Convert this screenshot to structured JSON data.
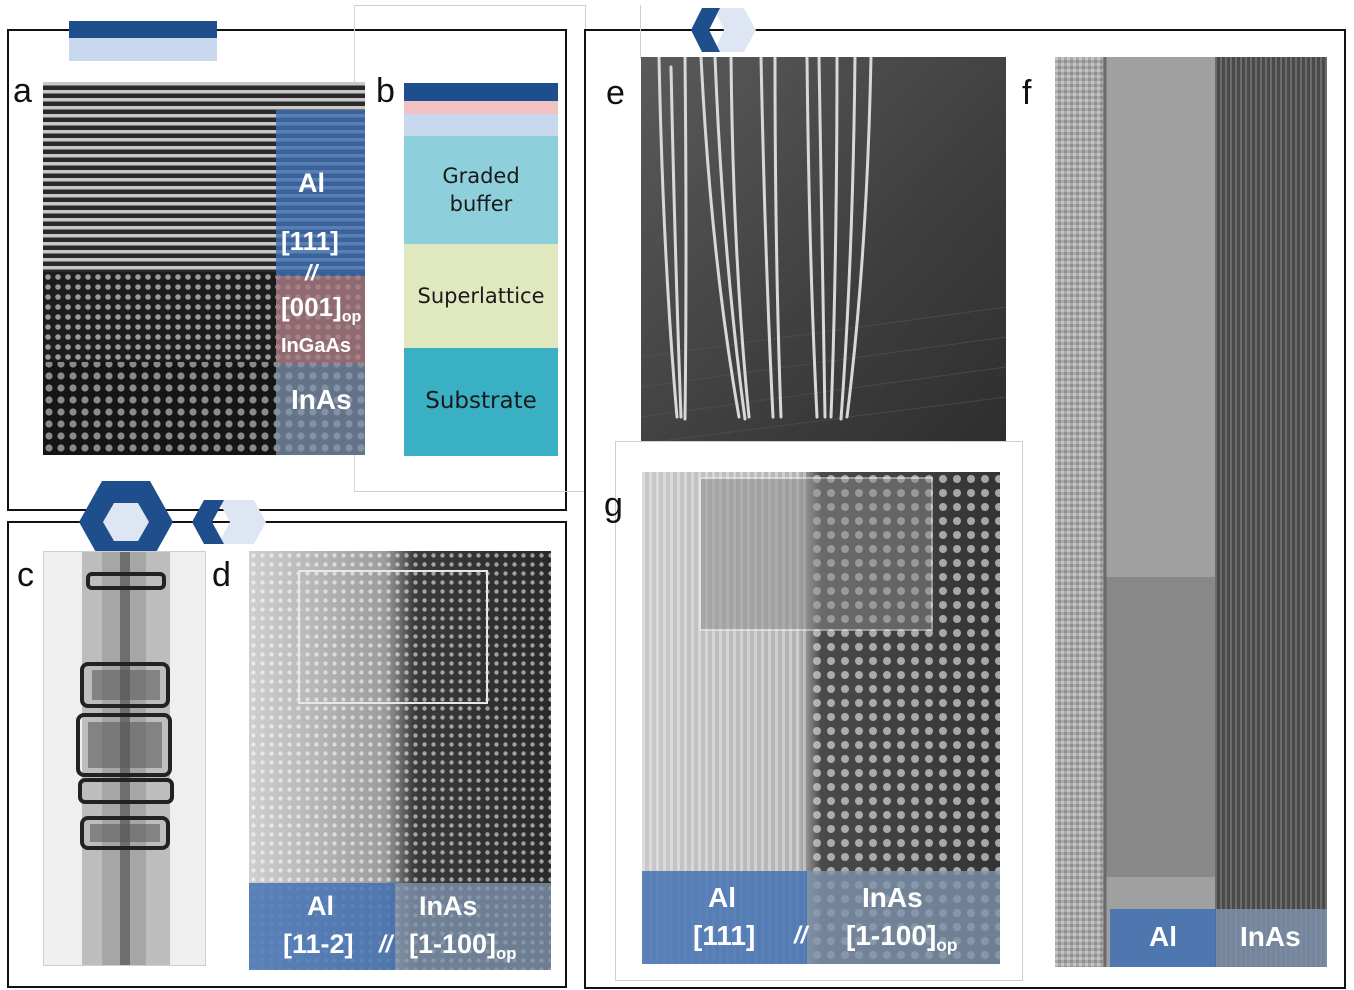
{
  "panels": {
    "a": {
      "label": "a",
      "al": "Al",
      "dir1": "[111]",
      "sep": "//",
      "dir2": "[001]",
      "dir2_sub": "op",
      "ingaas": "InGaAs",
      "inas": "InAs"
    },
    "b": {
      "label": "b",
      "layers": [
        "Graded buffer",
        "Superlattice",
        "Substrate"
      ]
    },
    "c": {
      "label": "c"
    },
    "d": {
      "label": "d",
      "al": "Al",
      "al_dir": "[11-2]",
      "sep": "//",
      "inas": "InAs",
      "inas_dir": "[1-100]",
      "inas_dir_sub": "op"
    },
    "e": {
      "label": "e"
    },
    "f": {
      "label": "f",
      "al": "Al",
      "inas": "InAs"
    },
    "g": {
      "label": "g",
      "al": "Al",
      "al_dir": "[111]",
      "sep": "//",
      "inas": "InAs",
      "inas_dir": "[1-100]",
      "inas_dir_sub": "op"
    }
  },
  "colors": {
    "navy": "#1f4e8c",
    "light_blue": "#c8d8ee",
    "pink": "#f2c1c1",
    "teal_light": "#8ecfdc",
    "superlattice": "#dfe8bf",
    "substrate": "#3ab0c5",
    "al_overlay": "#3f6fb2",
    "inas_overlay": "#7f93ad",
    "ingaas_overlay": "#a87c84"
  }
}
